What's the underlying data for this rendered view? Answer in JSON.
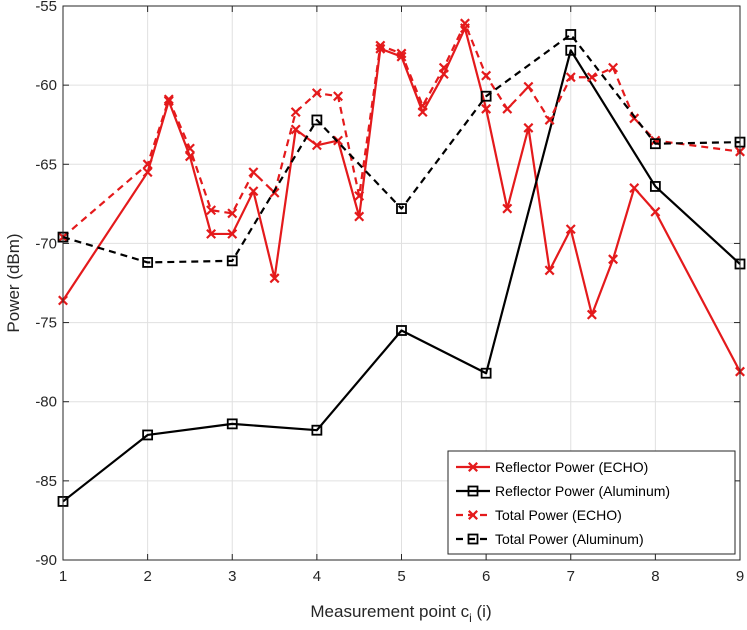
{
  "chart_data": {
    "type": "line",
    "xlabel_main": "Measurement point c",
    "xlabel_sub": "i",
    "xlabel_tail": " (i)",
    "ylabel": "Power (dBm)",
    "xlim": [
      1,
      9
    ],
    "ylim": [
      -90,
      -55
    ],
    "xticks": [
      1,
      2,
      3,
      4,
      5,
      6,
      7,
      8,
      9
    ],
    "yticks": [
      -90,
      -85,
      -80,
      -75,
      -70,
      -65,
      -60,
      -55
    ],
    "grid": true,
    "legend_position": "bottom-right",
    "series": [
      {
        "name": "Reflector Power (ECHO)",
        "color": "#e41a1c",
        "dash": "solid",
        "marker": "x",
        "x": [
          1,
          2,
          2.25,
          2.5,
          2.75,
          3,
          3.25,
          3.5,
          3.75,
          4,
          4.25,
          4.5,
          4.75,
          5,
          5.25,
          5.5,
          5.75,
          6,
          6.25,
          6.5,
          6.75,
          7,
          7.25,
          7.5,
          7.75,
          8,
          9
        ],
        "y": [
          -73.6,
          -65.5,
          -61.0,
          -64.5,
          -69.4,
          -69.4,
          -66.7,
          -72.2,
          -62.8,
          -63.8,
          -63.5,
          -68.3,
          -57.7,
          -58.2,
          -61.7,
          -59.3,
          -56.4,
          -61.5,
          -67.8,
          -62.7,
          -71.7,
          -69.1,
          -74.5,
          -71.0,
          -66.5,
          -68.0,
          -78.1
        ]
      },
      {
        "name": "Reflector Power (Aluminum)",
        "color": "#000000",
        "dash": "solid",
        "marker": "square",
        "x": [
          1,
          2,
          3,
          4,
          5,
          6,
          7,
          8,
          9
        ],
        "y": [
          -86.3,
          -82.1,
          -81.4,
          -81.8,
          -75.5,
          -78.2,
          -57.8,
          -66.4,
          -71.3
        ]
      },
      {
        "name": "Total Power (ECHO)",
        "color": "#e41a1c",
        "dash": "dashed",
        "marker": "x",
        "x": [
          1,
          2,
          2.25,
          2.5,
          2.75,
          3,
          3.25,
          3.5,
          3.75,
          4,
          4.25,
          4.5,
          4.75,
          5,
          5.25,
          5.5,
          5.75,
          6,
          6.25,
          6.5,
          6.75,
          7,
          7.25,
          7.5,
          7.75,
          8,
          9
        ],
        "y": [
          -69.6,
          -65.0,
          -60.9,
          -64.0,
          -67.9,
          -68.1,
          -65.5,
          -66.8,
          -61.7,
          -60.5,
          -60.7,
          -67.0,
          -57.5,
          -58.0,
          -61.3,
          -58.9,
          -56.1,
          -59.4,
          -61.5,
          -60.1,
          -62.2,
          -59.5,
          -59.5,
          -58.9,
          -62.1,
          -63.5,
          -64.2
        ]
      },
      {
        "name": "Total Power (Aluminum)",
        "color": "#000000",
        "dash": "dashed",
        "marker": "square",
        "x": [
          1,
          2,
          3,
          4,
          5,
          6,
          7,
          8,
          9
        ],
        "y": [
          -69.6,
          -71.2,
          -71.1,
          -62.2,
          -67.8,
          -60.7,
          -56.8,
          -63.7,
          -63.6
        ]
      }
    ]
  }
}
